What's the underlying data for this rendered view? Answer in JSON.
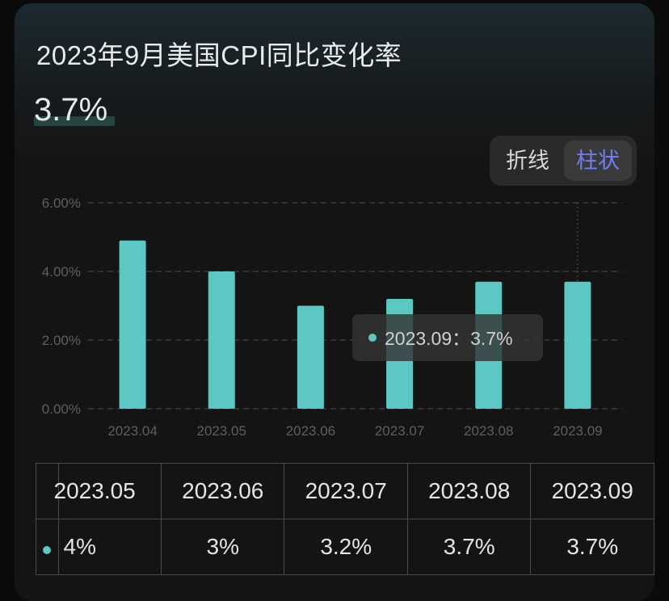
{
  "title": "2023年9月美国CPI同比变化率",
  "current_value": "3.7%",
  "toggle": {
    "line_label": "折线",
    "bar_label": "柱状",
    "selected": "柱状"
  },
  "colors": {
    "bar": "#5cc7c3",
    "toggle_active": "#6f7ff0",
    "background": "#141414"
  },
  "tooltip": {
    "label": "2023.09",
    "sep": "：",
    "value": "3.7%"
  },
  "chart_data": {
    "type": "bar",
    "categories": [
      "2023.04",
      "2023.05",
      "2023.06",
      "2023.07",
      "2023.08",
      "2023.09"
    ],
    "values": [
      4.9,
      4.0,
      3.0,
      3.2,
      3.7,
      3.7
    ],
    "y_ticks": [
      "0.00%",
      "2.00%",
      "4.00%",
      "6.00%"
    ],
    "ylim": [
      0,
      6
    ],
    "grid": true,
    "highlighted_category": "2023.09"
  },
  "table": {
    "header": [
      "2023.05",
      "2023.06",
      "2023.07",
      "2023.08",
      "2023.09"
    ],
    "row": [
      "4%",
      "3%",
      "3.2%",
      "3.7%",
      "3.7%"
    ]
  }
}
